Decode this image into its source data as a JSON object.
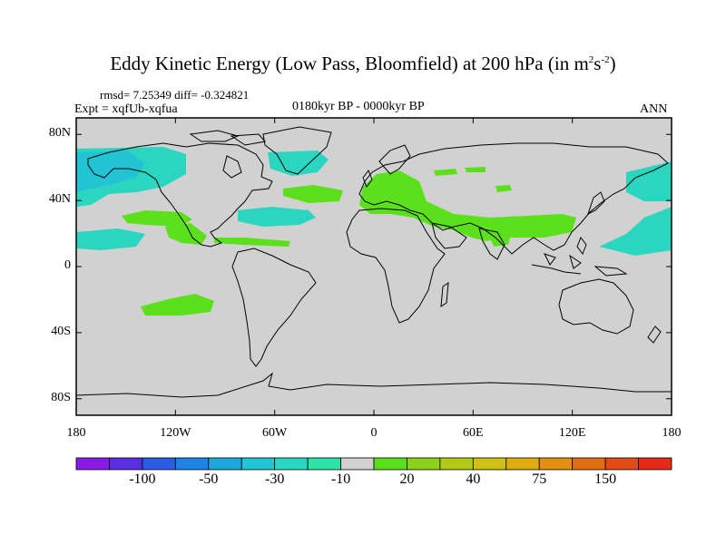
{
  "title": {
    "main": "Eddy Kinetic Energy (Low Pass, Bloomfield) at 200 hPa (in m",
    "sup1": "2",
    "mid": "s",
    "sup2": "-2",
    "end": ")"
  },
  "stats": "rmsd= 7.25349 diff= -0.324821",
  "experiment": "Expt = xqfUb-xqfua",
  "period": "0180kyr BP - 0000kyr BP",
  "season": "ANN",
  "map": {
    "projection": "cylindrical equidistant",
    "lon_range": [
      -180,
      180
    ],
    "lat_range": [
      -90,
      90
    ],
    "lat_ticks": [
      {
        "lat": 80,
        "label": "80N"
      },
      {
        "lat": 40,
        "label": "40N"
      },
      {
        "lat": 0,
        "label": "0"
      },
      {
        "lat": -40,
        "label": "40S"
      },
      {
        "lat": -80,
        "label": "80S"
      }
    ],
    "lon_ticks": [
      {
        "lon": -180,
        "label": "180"
      },
      {
        "lon": -120,
        "label": "120W"
      },
      {
        "lon": -60,
        "label": "60W"
      },
      {
        "lon": 0,
        "label": "0"
      },
      {
        "lon": 60,
        "label": "60E"
      },
      {
        "lon": 120,
        "label": "120E"
      },
      {
        "lon": 180,
        "label": "180"
      }
    ],
    "background_color": "#d1d1d1",
    "coast_color": "#000000"
  },
  "colorbar": {
    "colors": [
      "#8a1be6",
      "#5a2ee3",
      "#2b5ce6",
      "#1e83e6",
      "#1aa8df",
      "#22c4d4",
      "#2ad6c0",
      "#2de3a8",
      "#d1d1d1",
      "#5ce01c",
      "#8cd21a",
      "#b2c916",
      "#cec113",
      "#dfad10",
      "#e38f10",
      "#e36e12",
      "#e34a15",
      "#e52a18"
    ],
    "labels": [
      {
        "index": 2,
        "text": "-100"
      },
      {
        "index": 4,
        "text": "-50"
      },
      {
        "index": 6,
        "text": "-30"
      },
      {
        "index": 8,
        "text": "-10"
      },
      {
        "index": 10,
        "text": "20"
      },
      {
        "index": 12,
        "text": "40"
      },
      {
        "index": 14,
        "text": "75"
      },
      {
        "index": 16,
        "text": "150"
      }
    ]
  },
  "field_colors": {
    "negative": "#2ad6c0",
    "negative_strong": "#22c4d4",
    "positive": "#5ce01c"
  }
}
